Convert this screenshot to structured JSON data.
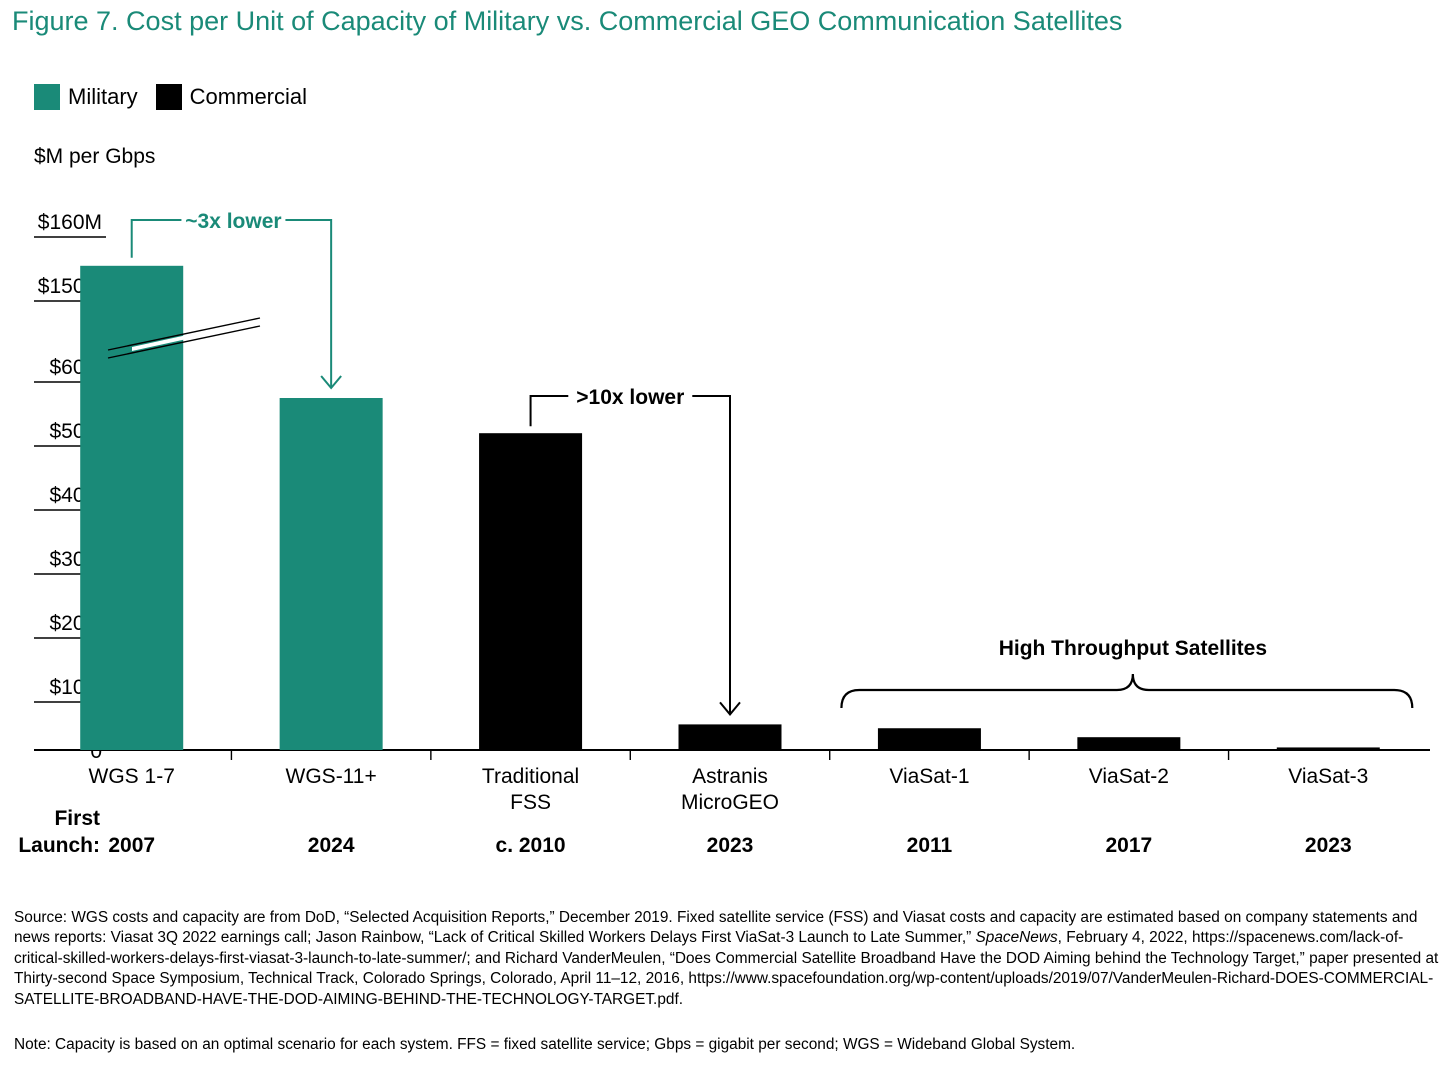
{
  "title": "Figure 7. Cost per Unit of Capacity of Military vs. Commercial GEO Communication Satellites",
  "colors": {
    "military": "#1a8a78",
    "commercial": "#000000",
    "title": "#1a8a78"
  },
  "chart_data": {
    "type": "bar",
    "ylabel": "$M per Gbps",
    "axis_break": {
      "lower_top": 60,
      "upper_range": [
        150,
        160
      ]
    },
    "yticks": [
      {
        "label": "$160M",
        "value": 160
      },
      {
        "label": "$150M",
        "value": 150
      },
      {
        "label": "$60M",
        "value": 60
      },
      {
        "label": "$50M",
        "value": 50
      },
      {
        "label": "$40M",
        "value": 40
      },
      {
        "label": "$30M",
        "value": 30
      },
      {
        "label": "$20M",
        "value": 20
      },
      {
        "label": "$10M",
        "value": 10
      },
      {
        "label": "0",
        "value": 0
      }
    ],
    "legend": [
      {
        "name": "Military",
        "color": "#1a8a78"
      },
      {
        "name": "Commercial",
        "color": "#000000"
      }
    ],
    "year_row_label": [
      "First",
      "Launch:"
    ],
    "bars": [
      {
        "label": [
          "WGS 1-7"
        ],
        "year": "2007",
        "value": 153,
        "group": "military"
      },
      {
        "label": [
          "WGS-11+"
        ],
        "year": "2024",
        "value": 55,
        "group": "military"
      },
      {
        "label": [
          "Traditional",
          "FSS"
        ],
        "year": "c. 2010",
        "value": 49.5,
        "group": "commercial"
      },
      {
        "label": [
          "Astranis",
          "MicroGEO"
        ],
        "year": "2023",
        "value": 4,
        "group": "commercial"
      },
      {
        "label": [
          "ViaSat-1"
        ],
        "year": "2011",
        "value": 3.4,
        "group": "commercial"
      },
      {
        "label": [
          "ViaSat-2"
        ],
        "year": "2017",
        "value": 2,
        "group": "commercial"
      },
      {
        "label": [
          "ViaSat-3"
        ],
        "year": "2023",
        "value": 0.4,
        "group": "commercial"
      }
    ],
    "annotations": [
      {
        "text": "~3x lower",
        "from": 0,
        "to": 1,
        "color": "#1a8a78"
      },
      {
        "text": ">10x lower",
        "from": 2,
        "to": 3,
        "color": "#000000"
      }
    ],
    "brace": {
      "text": "High Throughput Satellites",
      "from": 4,
      "to": 6
    }
  },
  "source_text": "Source: WGS costs and capacity are from DoD, “Selected Acquisition Reports,” December 2019. Fixed satellite service (FSS) and Viasat costs and capacity are estimated based on company statements and news reports: Viasat 3Q 2022 earnings call; Jason Rainbow, “Lack of Critical Skilled Workers Delays First ViaSat-3 Launch to Late Summer,”",
  "source_pub": "SpaceNews",
  "source_text_2": ", February 4, 2022, https://spacenews.com/lack-of-critical-skilled-workers-delays-first-viasat-3-launch-to-late-summer/; and Richard VanderMeulen, “Does Commercial Satellite Broadband Have the DOD Aiming behind the Technology Target,” paper presented at Thirty-second Space Symposium, Technical Track, Colorado Springs, Colorado, April 11–12, 2016, https://www.spacefoundation.org/wp-content/uploads/2019/07/VanderMeulen-Richard-DOES-COMMERCIAL-SATELLITE-BROADBAND-HAVE-THE-DOD-AIMING-BEHIND-THE-TECHNOLOGY-TARGET.pdf.",
  "note_text": "Note: Capacity is based on an optimal scenario for each system. FFS = fixed satellite service; Gbps = gigabit per second; WGS = Wideband Global System."
}
